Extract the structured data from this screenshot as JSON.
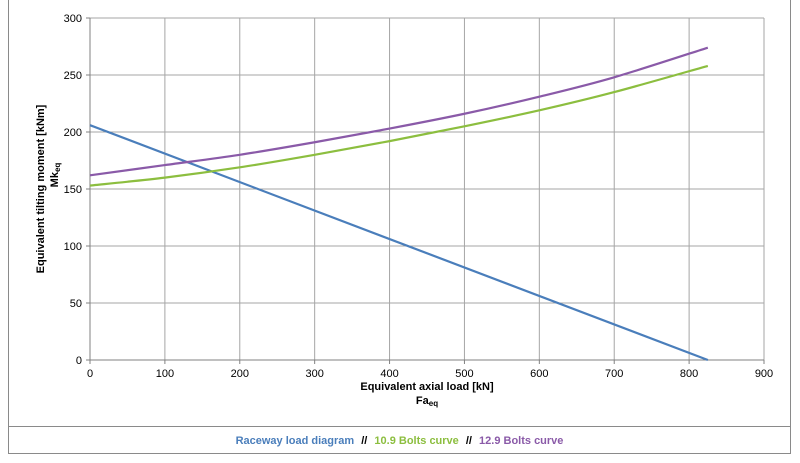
{
  "chart_data": {
    "type": "line",
    "xlabel": "Equivalent axial load [kN]",
    "xlabel_sub": "Fa",
    "xlabel_subscript": "eq",
    "ylabel": "Equivalent tilting moment [kNm]",
    "ylabel_sub": "Mk",
    "ylabel_subscript": "eq",
    "xlim": [
      0,
      900
    ],
    "ylim": [
      0,
      300
    ],
    "xticks": [
      0,
      100,
      200,
      300,
      400,
      500,
      600,
      700,
      800,
      900
    ],
    "yticks": [
      0,
      50,
      100,
      150,
      200,
      250,
      300
    ],
    "grid": true,
    "series": [
      {
        "name": "Raceway load diagram",
        "color": "#4a7ebb",
        "x": [
          0,
          825
        ],
        "y": [
          206,
          0
        ]
      },
      {
        "name": "10.9 Bolts curve",
        "color": "#8cbe3f",
        "x": [
          0,
          100,
          200,
          300,
          400,
          500,
          600,
          700,
          825
        ],
        "y": [
          153,
          160,
          169,
          180,
          192,
          205,
          219,
          235,
          258
        ]
      },
      {
        "name": "12.9 Bolts curve",
        "color": "#8a5aa8",
        "x": [
          0,
          100,
          200,
          300,
          400,
          500,
          600,
          700,
          825
        ],
        "y": [
          162,
          171,
          180,
          191,
          203,
          216,
          231,
          248,
          274
        ]
      }
    ]
  },
  "legend": {
    "items": [
      {
        "label": "Raceway load diagram",
        "color": "#4a7ebb"
      },
      {
        "label": "10.9 Bolts curve",
        "color": "#8cbe3f"
      },
      {
        "label": "12.9 Bolts curve",
        "color": "#8a5aa8"
      }
    ],
    "separator": "//"
  }
}
